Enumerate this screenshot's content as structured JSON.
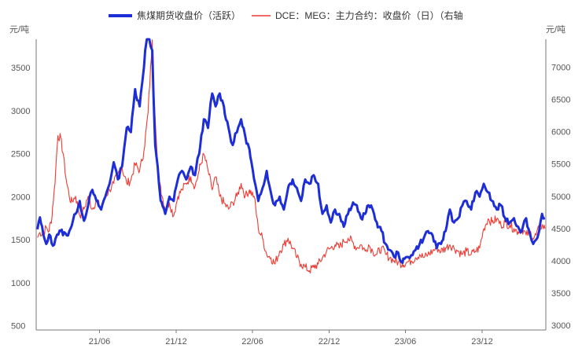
{
  "chart_data": {
    "type": "line",
    "legend_position": "top",
    "grid": false,
    "left_unit": "元/吨",
    "right_unit": "元/吨",
    "x_ticks": [
      "21/06",
      "21/12",
      "22/06",
      "22/12",
      "23/06",
      "23/12"
    ],
    "left_axis": {
      "ticks": [
        "500",
        "1000",
        "1500",
        "2000",
        "2500",
        "3000",
        "3500"
      ],
      "ylim": [
        450,
        3830
      ]
    },
    "right_axis": {
      "ticks": [
        "3000",
        "3500",
        "4000",
        "4500",
        "5000",
        "5500",
        "6000",
        "6500",
        "7000"
      ],
      "ylim": [
        2930,
        7430
      ]
    },
    "series": [
      {
        "name": "焦煤期货收盘价（活跃）",
        "axis": "left",
        "color": "#1e2ed6",
        "points": [
          [
            "2021-01-04",
            1620
          ],
          [
            "2021-01-10",
            1760
          ],
          [
            "2021-01-18",
            1560
          ],
          [
            "2021-01-25",
            1450
          ],
          [
            "2021-02-01",
            1560
          ],
          [
            "2021-02-10",
            1430
          ],
          [
            "2021-02-20",
            1560
          ],
          [
            "2021-03-01",
            1600
          ],
          [
            "2021-03-15",
            1550
          ],
          [
            "2021-03-25",
            1640
          ],
          [
            "2021-04-05",
            1800
          ],
          [
            "2021-04-15",
            1950
          ],
          [
            "2021-04-25",
            1720
          ],
          [
            "2021-05-05",
            1900
          ],
          [
            "2021-05-15",
            2080
          ],
          [
            "2021-05-25",
            1950
          ],
          [
            "2021-06-05",
            1850
          ],
          [
            "2021-06-15",
            2000
          ],
          [
            "2021-06-25",
            2150
          ],
          [
            "2021-07-05",
            2400
          ],
          [
            "2021-07-15",
            2200
          ],
          [
            "2021-07-25",
            2350
          ],
          [
            "2021-08-05",
            2800
          ],
          [
            "2021-08-15",
            2750
          ],
          [
            "2021-08-25",
            3250
          ],
          [
            "2021-09-05",
            3050
          ],
          [
            "2021-09-15",
            3500
          ],
          [
            "2021-09-22",
            3900
          ],
          [
            "2021-09-28",
            3850
          ],
          [
            "2021-10-05",
            3700
          ],
          [
            "2021-10-12",
            2600
          ],
          [
            "2021-10-18",
            2350
          ],
          [
            "2021-10-25",
            1950
          ],
          [
            "2021-11-05",
            1800
          ],
          [
            "2021-11-15",
            2000
          ],
          [
            "2021-11-25",
            1950
          ],
          [
            "2021-12-05",
            2200
          ],
          [
            "2021-12-15",
            2300
          ],
          [
            "2021-12-25",
            2200
          ],
          [
            "2022-01-05",
            2350
          ],
          [
            "2022-01-15",
            2250
          ],
          [
            "2022-01-25",
            2500
          ],
          [
            "2022-02-05",
            2900
          ],
          [
            "2022-02-15",
            2800
          ],
          [
            "2022-02-25",
            3200
          ],
          [
            "2022-03-05",
            3050
          ],
          [
            "2022-03-15",
            3200
          ],
          [
            "2022-03-25",
            3050
          ],
          [
            "2022-04-05",
            2800
          ],
          [
            "2022-04-15",
            2600
          ],
          [
            "2022-04-25",
            2750
          ],
          [
            "2022-05-05",
            2900
          ],
          [
            "2022-05-15",
            2700
          ],
          [
            "2022-05-25",
            2550
          ],
          [
            "2022-06-05",
            2200
          ],
          [
            "2022-06-15",
            1950
          ],
          [
            "2022-06-25",
            2100
          ],
          [
            "2022-07-05",
            2300
          ],
          [
            "2022-07-15",
            2050
          ],
          [
            "2022-07-25",
            1900
          ],
          [
            "2022-08-05",
            2000
          ],
          [
            "2022-08-15",
            1850
          ],
          [
            "2022-08-25",
            2100
          ],
          [
            "2022-09-05",
            2200
          ],
          [
            "2022-09-15",
            2100
          ],
          [
            "2022-09-25",
            1950
          ],
          [
            "2022-10-05",
            2200
          ],
          [
            "2022-10-15",
            2150
          ],
          [
            "2022-10-25",
            2250
          ],
          [
            "2022-11-05",
            2150
          ],
          [
            "2022-11-15",
            1800
          ],
          [
            "2022-11-25",
            1900
          ],
          [
            "2022-12-05",
            1700
          ],
          [
            "2022-12-15",
            1850
          ],
          [
            "2022-12-25",
            1800
          ],
          [
            "2023-01-05",
            1650
          ],
          [
            "2023-01-15",
            1800
          ],
          [
            "2023-01-25",
            1900
          ],
          [
            "2023-02-05",
            1900
          ],
          [
            "2023-02-15",
            1750
          ],
          [
            "2023-02-25",
            1800
          ],
          [
            "2023-03-05",
            1900
          ],
          [
            "2023-03-15",
            1850
          ],
          [
            "2023-03-25",
            1700
          ],
          [
            "2023-04-05",
            1600
          ],
          [
            "2023-04-15",
            1450
          ],
          [
            "2023-04-25",
            1380
          ],
          [
            "2023-05-05",
            1300
          ],
          [
            "2023-05-15",
            1350
          ],
          [
            "2023-05-25",
            1230
          ],
          [
            "2023-06-05",
            1300
          ],
          [
            "2023-06-15",
            1320
          ],
          [
            "2023-06-25",
            1380
          ],
          [
            "2023-07-05",
            1450
          ],
          [
            "2023-07-15",
            1520
          ],
          [
            "2023-07-25",
            1600
          ],
          [
            "2023-08-05",
            1550
          ],
          [
            "2023-08-15",
            1400
          ],
          [
            "2023-08-25",
            1450
          ],
          [
            "2023-09-05",
            1600
          ],
          [
            "2023-09-15",
            1850
          ],
          [
            "2023-09-25",
            1700
          ],
          [
            "2023-10-05",
            1750
          ],
          [
            "2023-10-15",
            1900
          ],
          [
            "2023-10-25",
            1950
          ],
          [
            "2023-11-05",
            1850
          ],
          [
            "2023-11-15",
            2050
          ],
          [
            "2023-11-25",
            2000
          ],
          [
            "2023-12-05",
            2150
          ],
          [
            "2023-12-15",
            2050
          ],
          [
            "2023-12-25",
            1950
          ],
          [
            "2024-01-05",
            1850
          ],
          [
            "2024-01-15",
            1900
          ],
          [
            "2024-01-25",
            1750
          ],
          [
            "2024-02-05",
            1700
          ],
          [
            "2024-02-15",
            1750
          ],
          [
            "2024-02-25",
            1650
          ],
          [
            "2024-03-05",
            1600
          ],
          [
            "2024-03-15",
            1750
          ],
          [
            "2024-03-25",
            1550
          ],
          [
            "2024-04-01",
            1450
          ],
          [
            "2024-04-08",
            1500
          ],
          [
            "2024-04-15",
            1600
          ],
          [
            "2024-04-22",
            1800
          ],
          [
            "2024-04-29",
            1750
          ]
        ]
      },
      {
        "name": "DCE：MEG：主力合约：收盘价（日）（右轴",
        "axis": "right",
        "color": "#f03a32",
        "points": [
          [
            "2021-01-04",
            4360
          ],
          [
            "2021-01-10",
            4440
          ],
          [
            "2021-01-18",
            4420
          ],
          [
            "2021-01-25",
            4520
          ],
          [
            "2021-02-01",
            4460
          ],
          [
            "2021-02-08",
            4700
          ],
          [
            "2021-02-15",
            5200
          ],
          [
            "2021-02-22",
            5940
          ],
          [
            "2021-03-01",
            5900
          ],
          [
            "2021-03-08",
            5600
          ],
          [
            "2021-03-15",
            5200
          ],
          [
            "2021-03-25",
            4900
          ],
          [
            "2021-04-05",
            5000
          ],
          [
            "2021-04-15",
            4700
          ],
          [
            "2021-04-25",
            4800
          ],
          [
            "2021-05-05",
            5000
          ],
          [
            "2021-05-15",
            4800
          ],
          [
            "2021-05-25",
            4950
          ],
          [
            "2021-06-05",
            4800
          ],
          [
            "2021-06-15",
            5000
          ],
          [
            "2021-06-25",
            5100
          ],
          [
            "2021-07-05",
            5200
          ],
          [
            "2021-07-15",
            5350
          ],
          [
            "2021-07-25",
            5450
          ],
          [
            "2021-08-05",
            5200
          ],
          [
            "2021-08-15",
            5250
          ],
          [
            "2021-08-25",
            5500
          ],
          [
            "2021-09-05",
            5400
          ],
          [
            "2021-09-15",
            5700
          ],
          [
            "2021-09-25",
            6300
          ],
          [
            "2021-10-05",
            7420
          ],
          [
            "2021-10-12",
            6200
          ],
          [
            "2021-10-18",
            5400
          ],
          [
            "2021-10-25",
            5150
          ],
          [
            "2021-11-05",
            4800
          ],
          [
            "2021-11-15",
            4900
          ],
          [
            "2021-11-25",
            4700
          ],
          [
            "2021-12-05",
            5000
          ],
          [
            "2021-12-15",
            5100
          ],
          [
            "2021-12-25",
            5200
          ],
          [
            "2022-01-05",
            5300
          ],
          [
            "2022-01-15",
            5150
          ],
          [
            "2022-01-25",
            5400
          ],
          [
            "2022-02-05",
            5650
          ],
          [
            "2022-02-15",
            5400
          ],
          [
            "2022-02-25",
            5100
          ],
          [
            "2022-03-05",
            5300
          ],
          [
            "2022-03-15",
            5000
          ],
          [
            "2022-03-25",
            4900
          ],
          [
            "2022-04-05",
            4800
          ],
          [
            "2022-04-15",
            4900
          ],
          [
            "2022-04-25",
            5000
          ],
          [
            "2022-05-05",
            5200
          ],
          [
            "2022-05-15",
            5000
          ],
          [
            "2022-05-25",
            5100
          ],
          [
            "2022-06-05",
            5000
          ],
          [
            "2022-06-15",
            4500
          ],
          [
            "2022-06-25",
            4350
          ],
          [
            "2022-07-05",
            4100
          ],
          [
            "2022-07-15",
            4050
          ],
          [
            "2022-07-25",
            3950
          ],
          [
            "2022-08-05",
            4150
          ],
          [
            "2022-08-15",
            4250
          ],
          [
            "2022-08-25",
            4350
          ],
          [
            "2022-09-05",
            4200
          ],
          [
            "2022-09-15",
            4050
          ],
          [
            "2022-09-25",
            3950
          ],
          [
            "2022-10-05",
            3900
          ],
          [
            "2022-10-15",
            3850
          ],
          [
            "2022-10-25",
            3900
          ],
          [
            "2022-11-05",
            3950
          ],
          [
            "2022-11-15",
            4050
          ],
          [
            "2022-11-25",
            4150
          ],
          [
            "2022-12-05",
            4200
          ],
          [
            "2022-12-15",
            4250
          ],
          [
            "2022-12-25",
            4200
          ],
          [
            "2023-01-05",
            4300
          ],
          [
            "2023-01-15",
            4350
          ],
          [
            "2023-01-25",
            4300
          ],
          [
            "2023-02-05",
            4200
          ],
          [
            "2023-02-15",
            4250
          ],
          [
            "2023-02-25",
            4150
          ],
          [
            "2023-03-05",
            4250
          ],
          [
            "2023-03-15",
            4150
          ],
          [
            "2023-03-25",
            4100
          ],
          [
            "2023-04-05",
            4200
          ],
          [
            "2023-04-15",
            4100
          ],
          [
            "2023-04-25",
            4050
          ],
          [
            "2023-05-05",
            4000
          ],
          [
            "2023-05-15",
            3980
          ],
          [
            "2023-05-25",
            3950
          ],
          [
            "2023-06-05",
            3980
          ],
          [
            "2023-06-15",
            4000
          ],
          [
            "2023-06-25",
            4050
          ],
          [
            "2023-07-05",
            4100
          ],
          [
            "2023-07-15",
            4050
          ],
          [
            "2023-07-25",
            4100
          ],
          [
            "2023-08-05",
            4150
          ],
          [
            "2023-08-15",
            4200
          ],
          [
            "2023-08-25",
            4150
          ],
          [
            "2023-09-05",
            4200
          ],
          [
            "2023-09-15",
            4250
          ],
          [
            "2023-09-25",
            4200
          ],
          [
            "2023-10-05",
            4150
          ],
          [
            "2023-10-15",
            4100
          ],
          [
            "2023-10-25",
            4150
          ],
          [
            "2023-11-05",
            4100
          ],
          [
            "2023-11-15",
            4150
          ],
          [
            "2023-11-25",
            4200
          ],
          [
            "2023-12-05",
            4500
          ],
          [
            "2023-12-15",
            4650
          ],
          [
            "2023-12-25",
            4600
          ],
          [
            "2024-01-05",
            4650
          ],
          [
            "2024-01-15",
            4550
          ],
          [
            "2024-01-25",
            4600
          ],
          [
            "2024-02-05",
            4550
          ],
          [
            "2024-02-15",
            4500
          ],
          [
            "2024-02-25",
            4450
          ],
          [
            "2024-03-05",
            4500
          ],
          [
            "2024-03-15",
            4400
          ],
          [
            "2024-03-25",
            4450
          ],
          [
            "2024-04-01",
            4350
          ],
          [
            "2024-04-08",
            4400
          ],
          [
            "2024-04-15",
            4500
          ],
          [
            "2024-04-22",
            4550
          ],
          [
            "2024-04-29",
            4500
          ]
        ]
      }
    ]
  }
}
